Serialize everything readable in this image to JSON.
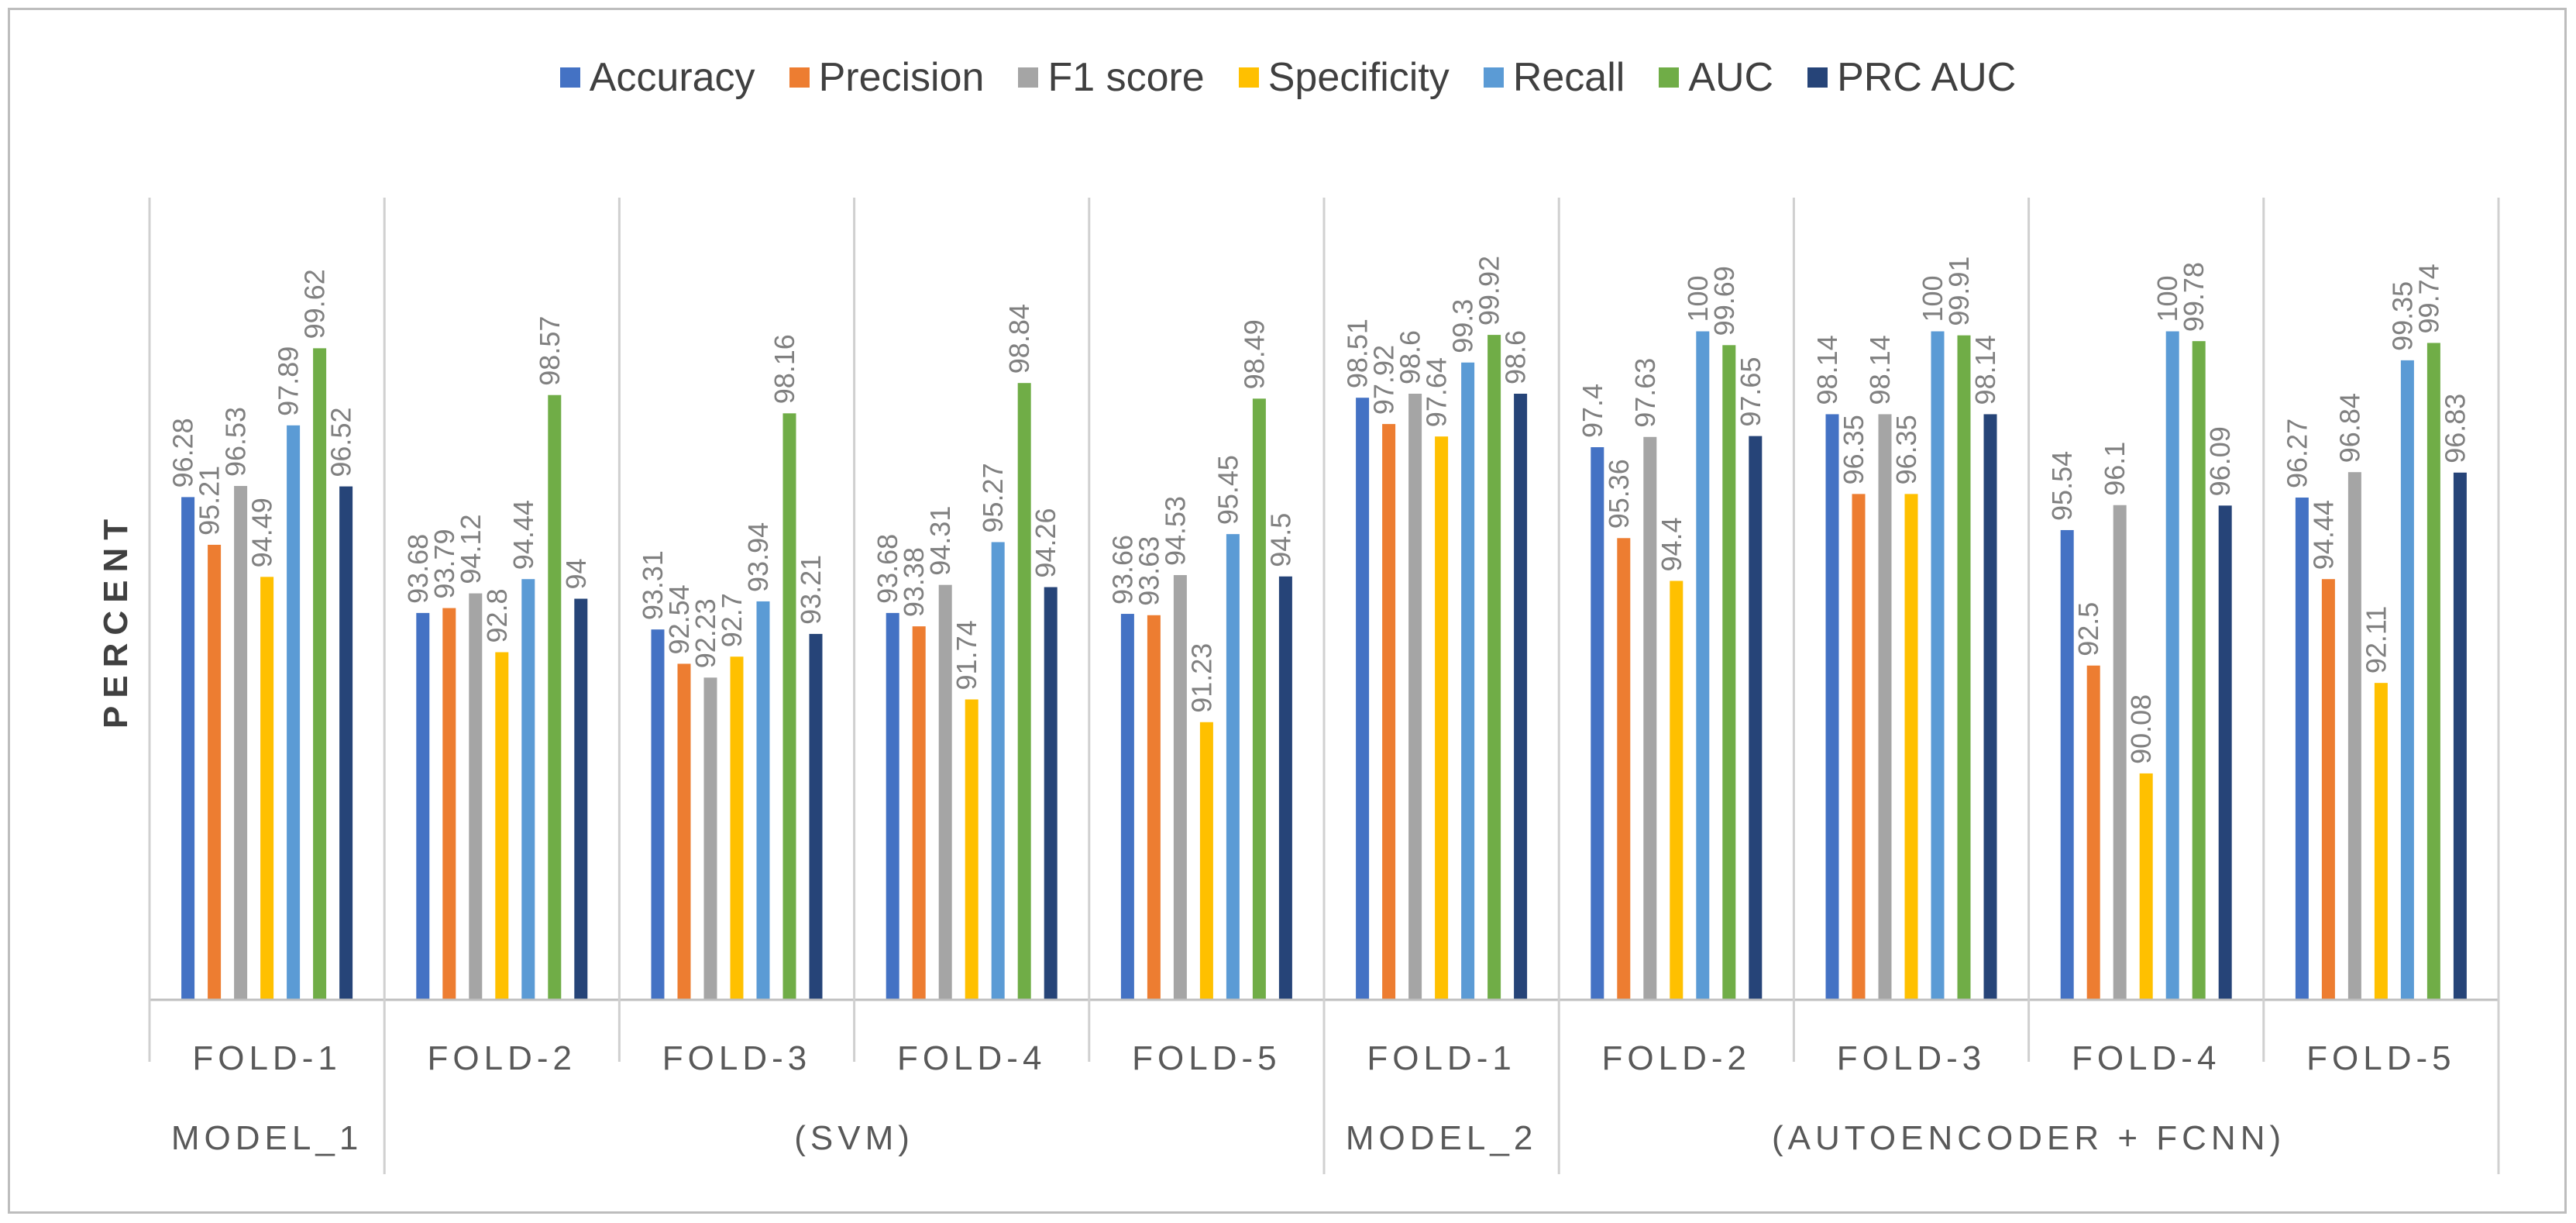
{
  "chart_data": {
    "type": "bar",
    "ylabel": "PERCENT",
    "ylim": [
      85,
      101
    ],
    "categories": [
      "FOLD-1",
      "FOLD-2",
      "FOLD-3",
      "FOLD-4",
      "FOLD-5",
      "FOLD-1",
      "FOLD-2",
      "FOLD-3",
      "FOLD-4",
      "FOLD-5"
    ],
    "groups": [
      {
        "label": "MODEL_1",
        "from": 0,
        "to": 0
      },
      {
        "label": "(SVM)",
        "from": 1,
        "to": 4
      },
      {
        "label": "MODEL_2",
        "from": 5,
        "to": 5
      },
      {
        "label": "(AUTOENCODER + FCNN)",
        "from": 6,
        "to": 9
      }
    ],
    "series": [
      {
        "name": "Accuracy",
        "color": "#4472C4",
        "values": [
          96.28,
          93.68,
          93.31,
          93.68,
          93.66,
          98.51,
          97.4,
          98.14,
          95.54,
          96.27
        ]
      },
      {
        "name": "Precision",
        "color": "#ED7D31",
        "values": [
          95.21,
          93.79,
          92.54,
          93.38,
          93.63,
          97.92,
          95.36,
          96.35,
          92.5,
          94.44
        ]
      },
      {
        "name": "F1 score",
        "color": "#A5A5A5",
        "values": [
          96.53,
          94.12,
          92.23,
          94.31,
          94.53,
          98.6,
          97.63,
          98.14,
          96.1,
          96.84
        ]
      },
      {
        "name": "Specificity",
        "color": "#FFC000",
        "values": [
          94.49,
          92.8,
          92.7,
          91.74,
          91.23,
          97.64,
          94.4,
          96.35,
          90.08,
          92.11
        ]
      },
      {
        "name": "Recall",
        "color": "#5B9BD5",
        "values": [
          97.89,
          94.44,
          93.94,
          95.27,
          95.45,
          99.3,
          100,
          100,
          100,
          99.35
        ]
      },
      {
        "name": "AUC",
        "color": "#70AD47",
        "values": [
          99.62,
          98.57,
          98.16,
          98.84,
          98.49,
          99.92,
          99.69,
          99.91,
          99.78,
          99.74
        ]
      },
      {
        "name": "PRC AUC",
        "color": "#264478",
        "values": [
          96.52,
          94,
          93.21,
          94.26,
          94.5,
          98.6,
          97.65,
          98.14,
          96.09,
          96.83
        ]
      }
    ]
  }
}
